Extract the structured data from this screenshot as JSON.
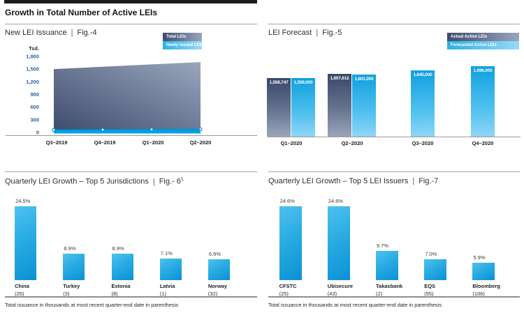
{
  "ui": {
    "divider": "|"
  },
  "header": {
    "title": "Growth in Total Number of Active LEIs"
  },
  "colors": {
    "navy_dark": "#3D4B6C",
    "navy_light": "#9AA5BC",
    "blue": "#29ABE2",
    "blue_deep": "#0B91D5",
    "band_blue": "#00A2E4",
    "tick_blue": "#2D5F9E"
  },
  "chart_data": [
    {
      "id": "fig4",
      "type": "area",
      "title": "New LEI Issuance",
      "fig": "Fig.-4",
      "y_unit_label": "Tsd.",
      "y_ticks": [
        "1,800",
        "1,500",
        "1,200",
        "900",
        "600",
        "300",
        "0"
      ],
      "ylim": [
        0,
        1800
      ],
      "legend": [
        "Total LEIs",
        "Newly Issued LEIs"
      ],
      "categories": [
        "Q3–2019",
        "Q4–2019",
        "Q1–2020",
        "Q2–2020"
      ],
      "series": [
        {
          "name": "Total LEIs",
          "values": [
            1500,
            1555,
            1610,
            1665
          ]
        },
        {
          "name": "Newly Issued LEIs",
          "values": [
            60,
            65,
            70,
            75
          ]
        }
      ]
    },
    {
      "id": "fig5",
      "type": "bar",
      "title": "LEI Forecast",
      "fig": "Fig.-5",
      "legend": [
        "Actual Active LEIs",
        "Forecasted Active LEIs"
      ],
      "categories": [
        "Q1–2020",
        "Q2–2020",
        "Q3–2020",
        "Q4–2020"
      ],
      "series": [
        {
          "name": "Actual Active LEIs",
          "values": [
            1558747,
            1607612,
            null,
            null
          ],
          "labels": [
            "1,558,747",
            "1,607,612",
            "",
            ""
          ]
        },
        {
          "name": "Forecasted Active LEIs",
          "values": [
            1559000,
            1601000,
            1645000,
            1696000
          ],
          "labels": [
            "1,559,000",
            "1,601,000",
            "1,645,000",
            "1,696,000"
          ]
        }
      ]
    },
    {
      "id": "fig6",
      "type": "bar",
      "title": "Quarterly LEI Growth – Top 5 Jurisdictions",
      "fig": "Fig.- 6",
      "fig_superscript": "1",
      "categories": [
        "China",
        "Turkey",
        "Estonia",
        "Latvia",
        "Norway"
      ],
      "values": [
        24.5,
        8.9,
        8.9,
        7.1,
        6.9
      ],
      "value_labels": [
        "24.5%",
        "8.9%",
        "8.9%",
        "7.1%",
        "6.9%"
      ],
      "issuance_labels": [
        "(25)",
        "(3)",
        "(8)",
        "(1)",
        "(32)"
      ],
      "footnote": "Total issuance in thousands at most recent quarter-end date in parenthesis"
    },
    {
      "id": "fig7",
      "type": "bar",
      "title": "Quarterly LEI Growth – Top 5 LEI Issuers",
      "fig": "Fig.-7",
      "categories": [
        "CFSTC",
        "Ubisecure",
        "Takasbank",
        "EQS",
        "Bloomberg"
      ],
      "values": [
        24.6,
        24.6,
        9.7,
        7.0,
        5.9
      ],
      "value_labels": [
        "24.6%",
        "24.6%",
        "9.7%",
        "7.0%",
        "5.9%"
      ],
      "issuance_labels": [
        "(25)",
        "(43)",
        "(2)",
        "(55)",
        "(106)"
      ],
      "footnote": "Total issuance in thousands at most recent quarter-end date in parenthesis"
    }
  ]
}
